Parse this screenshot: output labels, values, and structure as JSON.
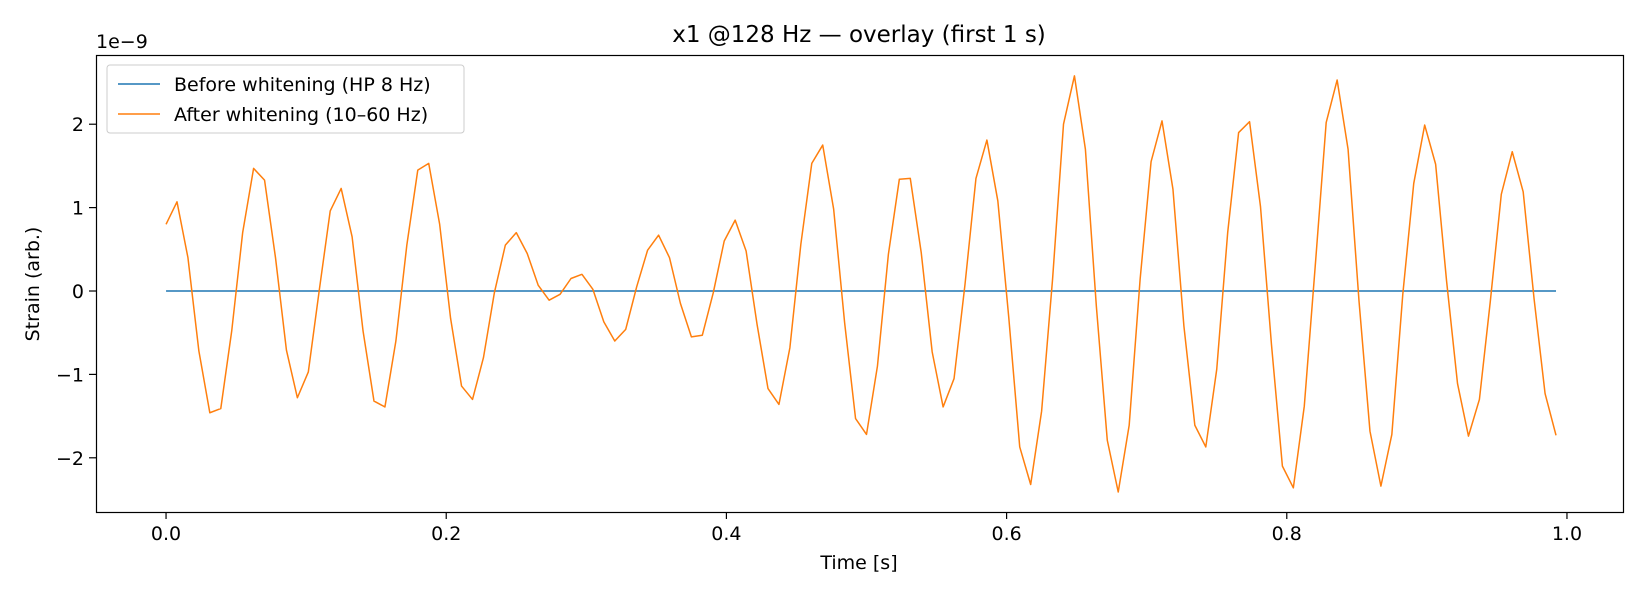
{
  "chart_data": {
    "type": "line",
    "title": "x1 @128 Hz — overlay (first 1 s)",
    "xlabel": "Time [s]",
    "ylabel": "Strain (arb.)",
    "offset_text": "1e−9",
    "xlim": [
      -0.05,
      1.04
    ],
    "ylim": [
      -2.65,
      2.83
    ],
    "xticks": [
      0.0,
      0.2,
      0.4,
      0.6,
      0.8,
      1.0
    ],
    "xtick_labels": [
      "0.0",
      "0.2",
      "0.4",
      "0.6",
      "0.8",
      "1.0"
    ],
    "yticks": [
      -2,
      -1,
      0,
      1,
      2
    ],
    "ytick_labels": [
      "−2",
      "−1",
      "0",
      "1",
      "2"
    ],
    "grid": false,
    "legend_position": "top-left",
    "series": [
      {
        "name": "Before whitening (HP 8 Hz)",
        "color": "#1f77b4",
        "x": [
          0.0,
          0.9921875
        ],
        "y": [
          0.0,
          0.0
        ]
      },
      {
        "name": "After whitening (10–60 Hz)",
        "color": "#ff7f0e",
        "x": [
          0.0,
          0.0078125,
          0.015625,
          0.0234375,
          0.03125,
          0.0390625,
          0.046875,
          0.0546875,
          0.0625,
          0.0703125,
          0.078125,
          0.0859375,
          0.09375,
          0.1015625,
          0.109375,
          0.1171875,
          0.125,
          0.1328125,
          0.140625,
          0.1484375,
          0.15625,
          0.1640625,
          0.171875,
          0.1796875,
          0.1875,
          0.1953125,
          0.203125,
          0.2109375,
          0.21875,
          0.2265625,
          0.234375,
          0.2421875,
          0.25,
          0.2578125,
          0.265625,
          0.2734375,
          0.28125,
          0.2890625,
          0.296875,
          0.3046875,
          0.3125,
          0.3203125,
          0.328125,
          0.3359375,
          0.34375,
          0.3515625,
          0.359375,
          0.3671875,
          0.375,
          0.3828125,
          0.390625,
          0.3984375,
          0.40625,
          0.4140625,
          0.421875,
          0.4296875,
          0.4375,
          0.4453125,
          0.453125,
          0.4609375,
          0.46875,
          0.4765625,
          0.484375,
          0.4921875,
          0.5,
          0.5078125,
          0.515625,
          0.5234375,
          0.53125,
          0.5390625,
          0.546875,
          0.5546875,
          0.5625,
          0.5703125,
          0.578125,
          0.5859375,
          0.59375,
          0.6015625,
          0.609375,
          0.6171875,
          0.625,
          0.6328125,
          0.640625,
          0.6484375,
          0.65625,
          0.6640625,
          0.671875,
          0.6796875,
          0.6875,
          0.6953125,
          0.703125,
          0.7109375,
          0.71875,
          0.7265625,
          0.734375,
          0.7421875,
          0.75,
          0.7578125,
          0.765625,
          0.7734375,
          0.78125,
          0.7890625,
          0.796875,
          0.8046875,
          0.8125,
          0.8203125,
          0.828125,
          0.8359375,
          0.84375,
          0.8515625,
          0.859375,
          0.8671875,
          0.875,
          0.8828125,
          0.890625,
          0.8984375,
          0.90625,
          0.9140625,
          0.921875,
          0.9296875,
          0.9375,
          0.9453125,
          0.953125,
          0.9609375,
          0.96875,
          0.9765625,
          0.984375,
          0.9921875
        ],
        "y": [
          0.8,
          1.07,
          0.4,
          -0.72,
          -1.46,
          -1.41,
          -0.48,
          0.7,
          1.47,
          1.33,
          0.4,
          -0.71,
          -1.28,
          -0.97,
          0.01,
          0.96,
          1.23,
          0.65,
          -0.48,
          -1.32,
          -1.39,
          -0.6,
          0.55,
          1.45,
          1.53,
          0.8,
          -0.33,
          -1.14,
          -1.3,
          -0.8,
          -0.02,
          0.55,
          0.7,
          0.45,
          0.07,
          -0.11,
          -0.04,
          0.15,
          0.2,
          0.02,
          -0.37,
          -0.6,
          -0.46,
          0.05,
          0.49,
          0.67,
          0.4,
          -0.15,
          -0.55,
          -0.53,
          -0.02,
          0.6,
          0.85,
          0.48,
          -0.4,
          -1.17,
          -1.36,
          -0.68,
          0.56,
          1.53,
          1.75,
          0.98,
          -0.38,
          -1.53,
          -1.72,
          -0.9,
          0.44,
          1.34,
          1.35,
          0.46,
          -0.73,
          -1.39,
          -1.05,
          0.08,
          1.35,
          1.81,
          1.08,
          -0.32,
          -1.87,
          -2.32,
          -1.44,
          0.14,
          2.0,
          2.58,
          1.7,
          -0.18,
          -1.79,
          -2.41,
          -1.61,
          0.14,
          1.55,
          2.04,
          1.22,
          -0.42,
          -1.61,
          -1.87,
          -0.94,
          0.7,
          1.9,
          2.03,
          1.01,
          -0.64,
          -2.1,
          -2.36,
          -1.38,
          0.3,
          2.02,
          2.53,
          1.7,
          -0.12,
          -1.68,
          -2.34,
          -1.72,
          -0.04,
          1.29,
          1.99,
          1.52,
          0.12,
          -1.11,
          -1.74,
          -1.3,
          -0.12,
          1.16,
          1.67,
          1.19,
          -0.1,
          -1.23,
          -1.73
        ]
      }
    ]
  }
}
